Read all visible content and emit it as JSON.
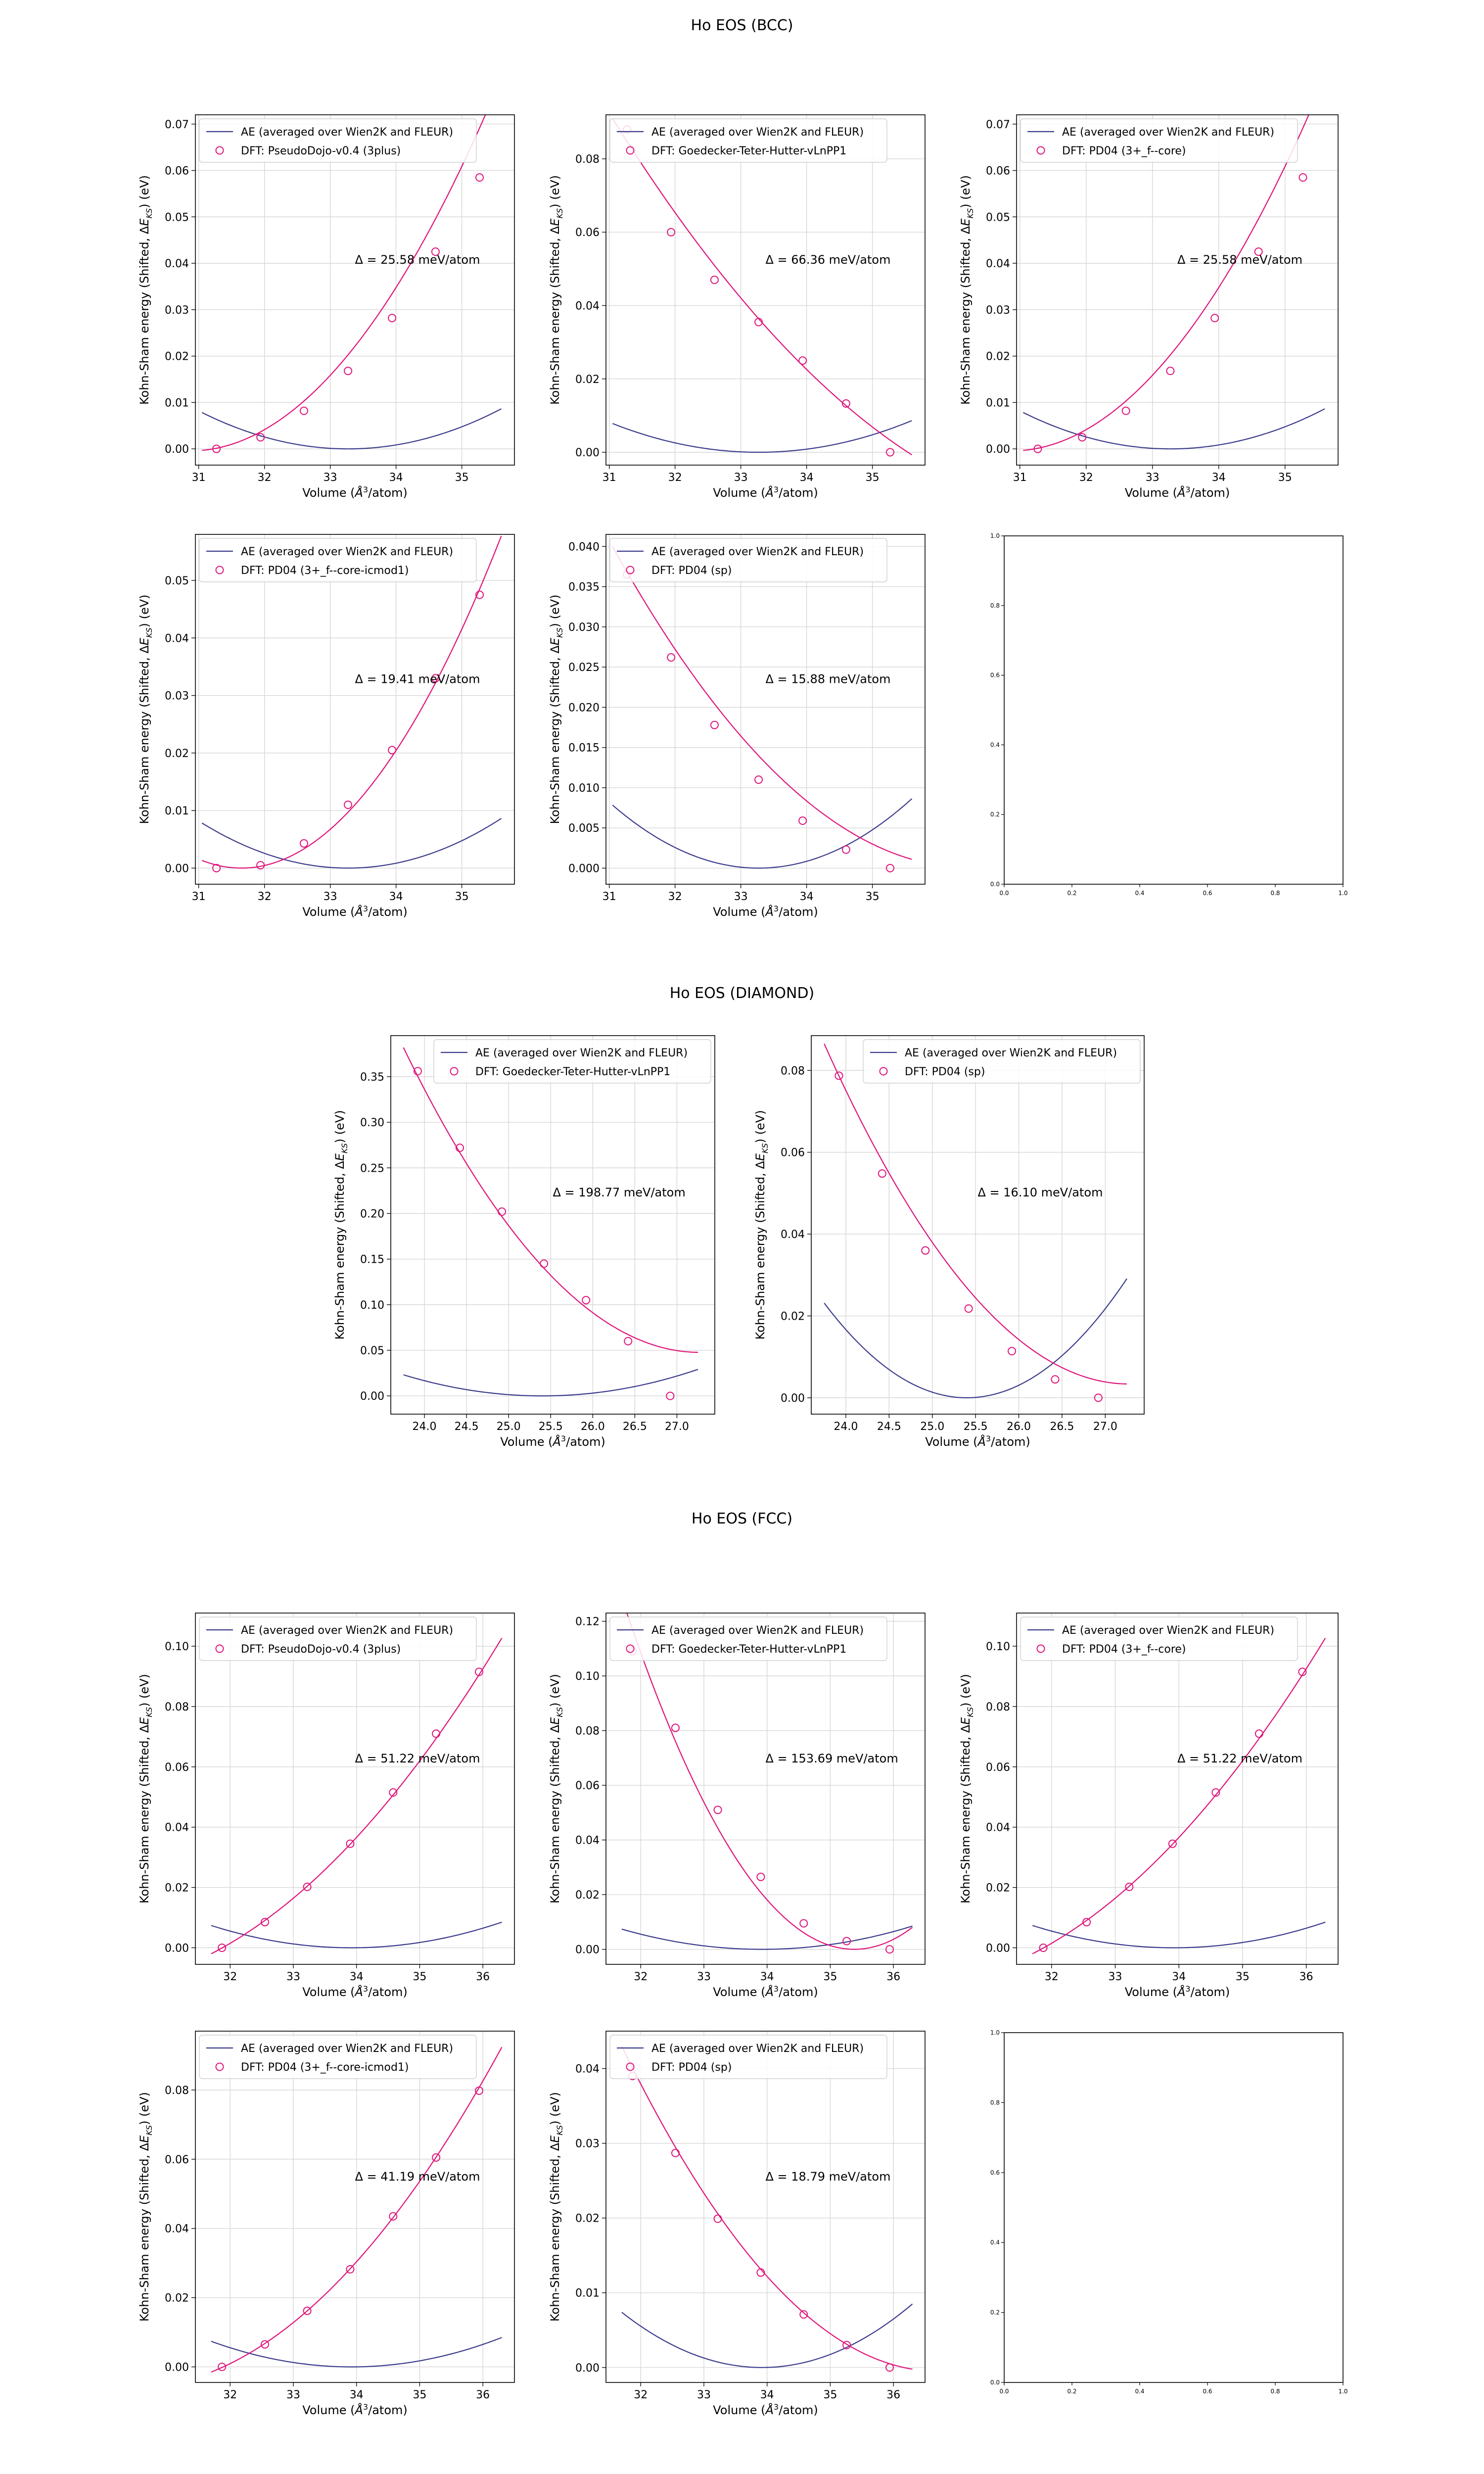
{
  "suptitles": [
    "Ho EOS (BCC)",
    "Ho EOS (DIAMOND)",
    "Ho EOS (FCC)"
  ],
  "colors": {
    "ae_line": "#3b3b8c",
    "dft": "#e0137a",
    "grid": "#d4d4d4"
  },
  "common": {
    "ae_label": "AE (averaged over Wien2K and FLEUR)",
    "xlabel": "Volume ($\\AA^3$/atom)",
    "xlabel_display": "Volume (Å³/atom)",
    "ylabel_display": "Kohn-Sham energy (Shifted, ΔE_KS) (eV)"
  },
  "chart_data": [
    {
      "type": "line",
      "group": "BCC",
      "title": "",
      "dft_label": "DFT: PseudoDojo-v0.4 (3plus)",
      "annotation": "Δ = 25.58 meV/atom",
      "xlim": [
        30.95,
        35.8
      ],
      "ylim": [
        -0.0035,
        0.072
      ],
      "xticks": [
        31,
        32,
        33,
        34,
        35
      ],
      "yticks": [
        0.0,
        0.01,
        0.02,
        0.03,
        0.04,
        0.05,
        0.06,
        0.07
      ],
      "ytick_labels": [
        "0.00",
        "0.01",
        "0.02",
        "0.03",
        "0.04",
        "0.05",
        "0.06",
        "0.07"
      ],
      "ae_curve": {
        "v0": 33.27,
        "a": 0.00159,
        "x": [
          31.05,
          35.6
        ]
      },
      "dft_points": {
        "x": [
          31.27,
          31.94,
          32.6,
          33.27,
          33.94,
          34.6,
          35.27
        ],
        "y": [
          0.0,
          0.0025,
          0.0082,
          0.0168,
          0.0282,
          0.0425,
          0.0585
        ]
      },
      "dft_curve": {
        "x0": 31.22,
        "c": [
          0.0,
          0.0025,
          0.0036
        ],
        "x": [
          31.05,
          35.6
        ]
      }
    },
    {
      "type": "line",
      "group": "BCC",
      "title": "",
      "dft_label": "DFT: Goedecker-Teter-Hutter-vLnPP1",
      "annotation": "Δ = 66.36 meV/atom",
      "xlim": [
        30.95,
        35.8
      ],
      "ylim": [
        -0.0035,
        0.092
      ],
      "xticks": [
        31,
        32,
        33,
        34,
        35
      ],
      "yticks": [
        0.0,
        0.02,
        0.04,
        0.06,
        0.08
      ],
      "ytick_labels": [
        "0.00",
        "0.02",
        "0.04",
        "0.06",
        "0.08"
      ],
      "ae_curve": {
        "v0": 33.27,
        "a": 0.00159,
        "x": [
          31.05,
          35.6
        ]
      },
      "dft_points": {
        "x": [
          31.27,
          31.94,
          32.6,
          33.27,
          33.94,
          34.6,
          35.27
        ],
        "y": [
          0.088,
          0.06,
          0.047,
          0.0355,
          0.025,
          0.0133,
          0.0
        ]
      },
      "dft_curve": {
        "x0": 31.05,
        "c": [
          0.091,
          -0.0288,
          0.0019
        ],
        "x": [
          31.05,
          35.6
        ]
      }
    },
    {
      "type": "line",
      "group": "BCC",
      "title": "",
      "dft_label": "DFT: PD04 (3+_f--core)",
      "annotation": "Δ = 25.58 meV/atom",
      "xlim": [
        30.95,
        35.8
      ],
      "ylim": [
        -0.0035,
        0.072
      ],
      "xticks": [
        31,
        32,
        33,
        34,
        35
      ],
      "yticks": [
        0.0,
        0.01,
        0.02,
        0.03,
        0.04,
        0.05,
        0.06,
        0.07
      ],
      "ytick_labels": [
        "0.00",
        "0.01",
        "0.02",
        "0.03",
        "0.04",
        "0.05",
        "0.06",
        "0.07"
      ],
      "ae_curve": {
        "v0": 33.27,
        "a": 0.00159,
        "x": [
          31.05,
          35.6
        ]
      },
      "dft_points": {
        "x": [
          31.27,
          31.94,
          32.6,
          33.27,
          33.94,
          34.6,
          35.27
        ],
        "y": [
          0.0,
          0.0025,
          0.0082,
          0.0168,
          0.0282,
          0.0425,
          0.0585
        ]
      },
      "dft_curve": {
        "x0": 31.22,
        "c": [
          0.0,
          0.0025,
          0.0036
        ],
        "x": [
          31.05,
          35.6
        ]
      }
    },
    {
      "type": "line",
      "group": "BCC",
      "title": "",
      "dft_label": "DFT: PD04 (3+_f--core-icmod1)",
      "annotation": "Δ = 19.41 meV/atom",
      "xlim": [
        30.95,
        35.8
      ],
      "ylim": [
        -0.0028,
        0.058
      ],
      "xticks": [
        31,
        32,
        33,
        34,
        35
      ],
      "yticks": [
        0.0,
        0.01,
        0.02,
        0.03,
        0.04,
        0.05
      ],
      "ytick_labels": [
        "0.00",
        "0.01",
        "0.02",
        "0.03",
        "0.04",
        "0.05"
      ],
      "ae_curve": {
        "v0": 33.27,
        "a": 0.00159,
        "x": [
          31.05,
          35.6
        ]
      },
      "dft_points": {
        "x": [
          31.27,
          31.94,
          32.6,
          33.27,
          33.94,
          34.6,
          35.27
        ],
        "y": [
          0.0,
          0.0005,
          0.0043,
          0.011,
          0.0205,
          0.033,
          0.0475
        ]
      },
      "dft_curve": {
        "x0": 31.65,
        "c": [
          0.0,
          0.0,
          0.0037
        ],
        "x": [
          31.05,
          35.6
        ]
      }
    },
    {
      "type": "line",
      "group": "BCC",
      "title": "",
      "dft_label": "DFT: PD04 (sp)",
      "annotation": "Δ = 15.88 meV/atom",
      "xlim": [
        30.95,
        35.8
      ],
      "ylim": [
        -0.002,
        0.0415
      ],
      "xticks": [
        31,
        32,
        33,
        34,
        35
      ],
      "yticks": [
        0.0,
        0.005,
        0.01,
        0.015,
        0.02,
        0.025,
        0.03,
        0.035,
        0.04
      ],
      "ytick_labels": [
        "0.000",
        "0.005",
        "0.010",
        "0.015",
        "0.020",
        "0.025",
        "0.030",
        "0.035",
        "0.040"
      ],
      "ae_curve": {
        "v0": 33.27,
        "a": 0.00159,
        "x": [
          31.05,
          35.6
        ]
      },
      "dft_points": {
        "x": [
          31.27,
          31.94,
          32.6,
          33.27,
          33.94,
          34.6,
          35.27
        ],
        "y": [
          0.0365,
          0.0262,
          0.0178,
          0.011,
          0.0059,
          0.0023,
          0.0
        ]
      },
      "dft_curve": {
        "x0": 31.05,
        "c": [
          0.04,
          -0.01474,
          0.00136
        ],
        "x": [
          31.05,
          35.6
        ]
      }
    },
    {
      "type": "empty",
      "group": "BCC",
      "ticks": [
        "0.0",
        "0.2",
        "0.4",
        "0.6",
        "0.8",
        "1.0"
      ]
    },
    {
      "type": "line",
      "group": "DIAMOND",
      "title": "",
      "dft_label": "DFT: Goedecker-Teter-Hutter-vLnPP1",
      "annotation": "Δ = 198.77 meV/atom",
      "xlim": [
        23.6,
        27.45
      ],
      "ylim": [
        -0.02,
        0.395
      ],
      "xticks": [
        24.0,
        24.5,
        25.0,
        25.5,
        26.0,
        26.5,
        27.0
      ],
      "xtick_labels": [
        "24.0",
        "24.5",
        "25.0",
        "25.5",
        "26.0",
        "26.5",
        "27.0"
      ],
      "yticks": [
        0.0,
        0.05,
        0.1,
        0.15,
        0.2,
        0.25,
        0.3,
        0.35
      ],
      "ytick_labels": [
        "0.00",
        "0.05",
        "0.10",
        "0.15",
        "0.20",
        "0.25",
        "0.30",
        "0.35"
      ],
      "ae_curve": {
        "v0": 25.4,
        "a": 0.0085,
        "x": [
          23.75,
          27.25
        ]
      },
      "dft_points": {
        "x": [
          23.92,
          24.42,
          24.92,
          25.42,
          25.92,
          26.42,
          26.92
        ],
        "y": [
          0.356,
          0.272,
          0.202,
          0.145,
          0.105,
          0.06,
          0.0
        ]
      },
      "dft_curve": {
        "x0": 23.75,
        "c": [
          0.382,
          -0.19,
          0.027
        ],
        "x": [
          23.75,
          27.25
        ]
      }
    },
    {
      "type": "line",
      "group": "DIAMOND",
      "title": "",
      "dft_label": "DFT: PD04 (sp)",
      "annotation": "Δ = 16.10 meV/atom",
      "xlim": [
        23.6,
        27.45
      ],
      "ylim": [
        -0.004,
        0.0885
      ],
      "xticks": [
        24.0,
        24.5,
        25.0,
        25.5,
        26.0,
        26.5,
        27.0
      ],
      "xtick_labels": [
        "24.0",
        "24.5",
        "25.0",
        "25.5",
        "26.0",
        "26.5",
        "27.0"
      ],
      "yticks": [
        0.0,
        0.02,
        0.04,
        0.06,
        0.08
      ],
      "ytick_labels": [
        "0.00",
        "0.02",
        "0.04",
        "0.06",
        "0.08"
      ],
      "ae_curve": {
        "v0": 25.4,
        "a": 0.0085,
        "x": [
          23.75,
          27.25
        ]
      },
      "dft_points": {
        "x": [
          23.92,
          24.42,
          24.92,
          25.42,
          25.92,
          26.42,
          26.92
        ],
        "y": [
          0.0787,
          0.0548,
          0.036,
          0.0218,
          0.0114,
          0.0045,
          0.0
        ]
      },
      "dft_curve": {
        "x0": 23.75,
        "c": [
          0.0865,
          -0.0472,
          0.0067
        ],
        "x": [
          23.75,
          27.25
        ]
      }
    },
    {
      "type": "line",
      "group": "FCC",
      "title": "",
      "dft_label": "DFT: PseudoDojo-v0.4 (3plus)",
      "annotation": "Δ = 51.22 meV/atom",
      "xlim": [
        31.45,
        36.5
      ],
      "ylim": [
        -0.0055,
        0.111
      ],
      "xticks": [
        32,
        33,
        34,
        35,
        36
      ],
      "yticks": [
        0.0,
        0.02,
        0.04,
        0.06,
        0.08,
        0.1
      ],
      "ytick_labels": [
        "0.00",
        "0.02",
        "0.04",
        "0.06",
        "0.08",
        "0.10"
      ],
      "ae_curve": {
        "v0": 33.92,
        "a": 0.0015,
        "x": [
          31.7,
          36.3
        ]
      },
      "dft_points": {
        "x": [
          31.87,
          32.55,
          33.22,
          33.9,
          34.58,
          35.26,
          35.94
        ],
        "y": [
          0.0,
          0.0085,
          0.0202,
          0.0345,
          0.0515,
          0.071,
          0.0915
        ]
      },
      "dft_curve": {
        "x0": 31.7,
        "c": [
          -0.002,
          0.0108,
          0.0026
        ],
        "x": [
          31.7,
          36.3
        ]
      }
    },
    {
      "type": "line",
      "group": "FCC",
      "title": "",
      "dft_label": "DFT: Goedecker-Teter-Hutter-vLnPP1",
      "annotation": "Δ = 153.69 meV/atom",
      "xlim": [
        31.45,
        36.5
      ],
      "ylim": [
        -0.0055,
        0.123
      ],
      "xticks": [
        32,
        33,
        34,
        35,
        36
      ],
      "yticks": [
        0.0,
        0.02,
        0.04,
        0.06,
        0.08,
        0.1,
        0.12
      ],
      "ytick_labels": [
        "0.00",
        "0.02",
        "0.04",
        "0.06",
        "0.08",
        "0.10",
        "0.12"
      ],
      "ae_curve": {
        "v0": 33.92,
        "a": 0.0015,
        "x": [
          31.7,
          36.3
        ]
      },
      "dft_points": {
        "x": [
          31.87,
          32.55,
          33.22,
          33.9,
          34.58,
          35.26,
          35.94
        ],
        "y": [
          0.109,
          0.081,
          0.051,
          0.0265,
          0.0095,
          0.003,
          0.0
        ]
      },
      "dft_curve": {
        "x0": 35.38,
        "c": [
          0.0,
          0.0,
          0.0095
        ],
        "x": [
          31.7,
          36.3
        ]
      }
    },
    {
      "type": "line",
      "group": "FCC",
      "title": "",
      "dft_label": "DFT: PD04 (3+_f--core)",
      "annotation": "Δ = 51.22 meV/atom",
      "xlim": [
        31.45,
        36.5
      ],
      "ylim": [
        -0.0055,
        0.111
      ],
      "xticks": [
        32,
        33,
        34,
        35,
        36
      ],
      "yticks": [
        0.0,
        0.02,
        0.04,
        0.06,
        0.08,
        0.1
      ],
      "ytick_labels": [
        "0.00",
        "0.02",
        "0.04",
        "0.06",
        "0.08",
        "0.10"
      ],
      "ae_curve": {
        "v0": 33.92,
        "a": 0.0015,
        "x": [
          31.7,
          36.3
        ]
      },
      "dft_points": {
        "x": [
          31.87,
          32.55,
          33.22,
          33.9,
          34.58,
          35.26,
          35.94
        ],
        "y": [
          0.0,
          0.0085,
          0.0202,
          0.0345,
          0.0515,
          0.071,
          0.0915
        ]
      },
      "dft_curve": {
        "x0": 31.7,
        "c": [
          -0.002,
          0.0108,
          0.0026
        ],
        "x": [
          31.7,
          36.3
        ]
      }
    },
    {
      "type": "line",
      "group": "FCC",
      "title": "",
      "dft_label": "DFT: PD04 (3+_f--core-icmod1)",
      "annotation": "Δ = 41.19 meV/atom",
      "xlim": [
        31.45,
        36.5
      ],
      "ylim": [
        -0.0045,
        0.097
      ],
      "xticks": [
        32,
        33,
        34,
        35,
        36
      ],
      "yticks": [
        0.0,
        0.02,
        0.04,
        0.06,
        0.08
      ],
      "ytick_labels": [
        "0.00",
        "0.02",
        "0.04",
        "0.06",
        "0.08"
      ],
      "ae_curve": {
        "v0": 33.92,
        "a": 0.0015,
        "x": [
          31.7,
          36.3
        ]
      },
      "dft_points": {
        "x": [
          31.87,
          32.55,
          33.22,
          33.9,
          34.58,
          35.26,
          35.94
        ],
        "y": [
          0.0,
          0.0065,
          0.0162,
          0.0282,
          0.0435,
          0.0605,
          0.0798
        ]
      },
      "dft_curve": {
        "x0": 31.7,
        "c": [
          -0.0015,
          0.0073,
          0.00285
        ],
        "x": [
          31.7,
          36.3
        ]
      }
    },
    {
      "type": "line",
      "group": "FCC",
      "title": "",
      "dft_label": "DFT: PD04 (sp)",
      "annotation": "Δ = 18.79 meV/atom",
      "xlim": [
        31.45,
        36.5
      ],
      "ylim": [
        -0.002,
        0.045
      ],
      "xticks": [
        32,
        33,
        34,
        35,
        36
      ],
      "yticks": [
        0.0,
        0.01,
        0.02,
        0.03,
        0.04
      ],
      "ytick_labels": [
        "0.00",
        "0.01",
        "0.02",
        "0.03",
        "0.04"
      ],
      "ae_curve": {
        "v0": 33.92,
        "a": 0.0015,
        "x": [
          31.7,
          36.3
        ]
      },
      "dft_points": {
        "x": [
          31.87,
          32.55,
          33.22,
          33.9,
          34.58,
          35.26,
          35.94
        ],
        "y": [
          0.039,
          0.0287,
          0.0199,
          0.0127,
          0.0071,
          0.003,
          0.0
        ]
      },
      "dft_curve": {
        "x0": 31.7,
        "c": [
          0.043,
          -0.0174,
          0.00174
        ],
        "x": [
          31.7,
          36.3
        ]
      }
    },
    {
      "type": "empty",
      "group": "FCC",
      "ticks": [
        "0.0",
        "0.2",
        "0.4",
        "0.6",
        "0.8",
        "1.0"
      ]
    }
  ]
}
